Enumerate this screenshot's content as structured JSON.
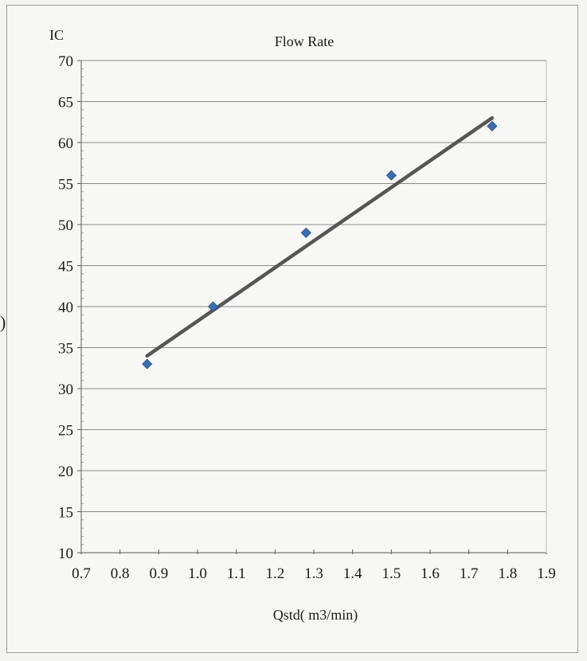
{
  "chart_data": {
    "type": "scatter",
    "title": "Flow Rate",
    "xlabel": "Qstd( m3/min)",
    "ylabel": "IC",
    "xlim": [
      0.7,
      1.9
    ],
    "ylim": [
      10,
      70
    ],
    "x_ticks": [
      "0.7",
      "0.8",
      "0.9",
      "1.0",
      "1.1",
      "1.2",
      "1.3",
      "1.4",
      "1.5",
      "1.6",
      "1.7",
      "1.8",
      "1.9"
    ],
    "y_ticks": [
      "10",
      "15",
      "20",
      "25",
      "30",
      "35",
      "40",
      "45",
      "50",
      "55",
      "60",
      "65",
      "70"
    ],
    "grid": "horizontal",
    "series": [
      {
        "x": [
          0.87,
          1.04,
          1.28,
          1.5,
          1.76
        ],
        "y": [
          33,
          40,
          49,
          56,
          62
        ],
        "color": "#3b6eb0",
        "marker": "diamond"
      }
    ],
    "trendline": {
      "x": [
        0.87,
        1.76
      ],
      "y": [
        34,
        63
      ],
      "color": "#555555"
    }
  }
}
